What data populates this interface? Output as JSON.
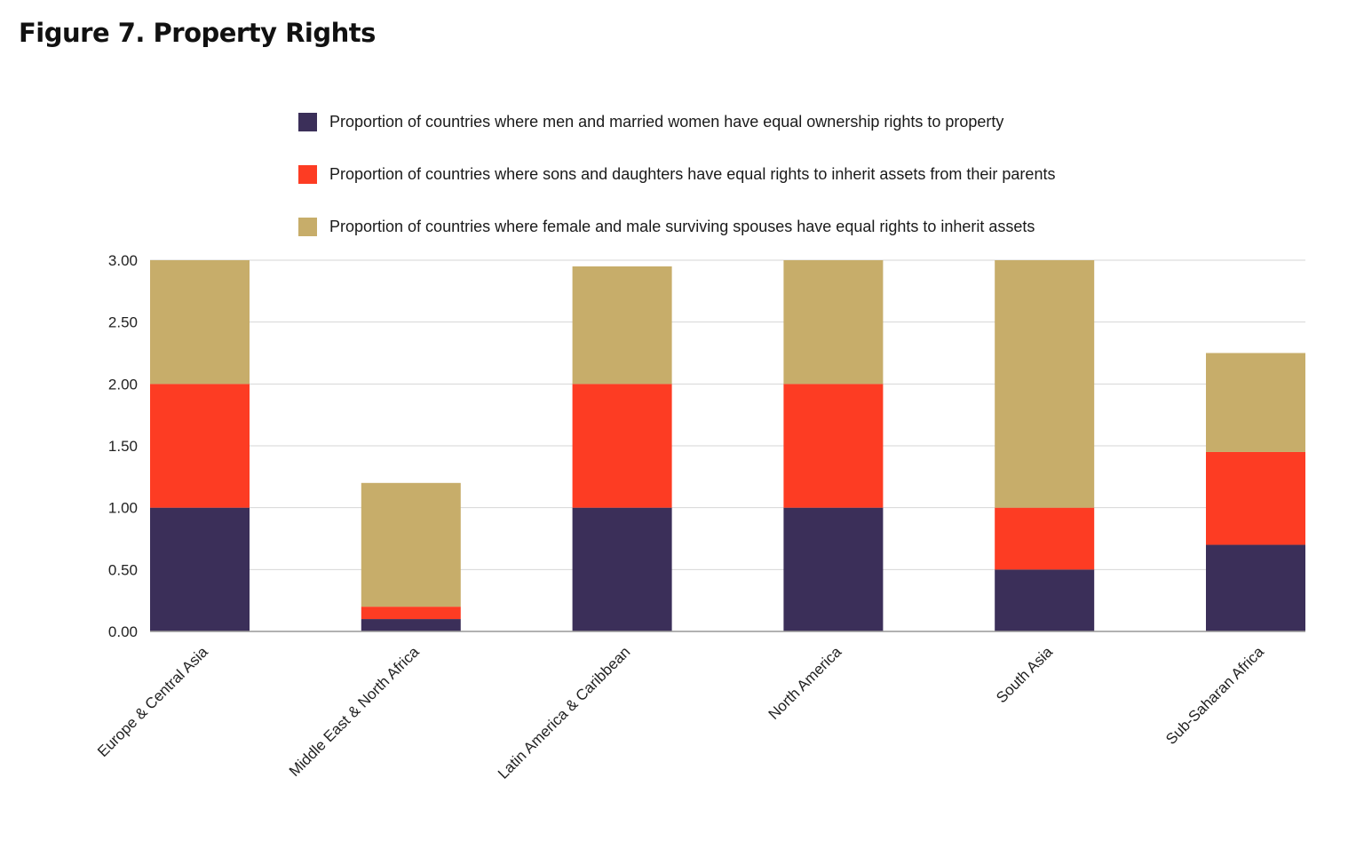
{
  "title": "Figure 7. Property Rights",
  "colors": {
    "men_married_women": "#3b2f59",
    "sons_daughters": "#fd3c23",
    "surviving_spouses": "#c7ad6a",
    "grid": "#d6d6d6",
    "axis": "#999999"
  },
  "legend": [
    {
      "label": "Proportion of countries where men and married women have equal ownership rights to property",
      "color": "#3b2f59"
    },
    {
      "label": "Proportion of countries where sons and daughters have equal rights to inherit assets from their parents",
      "color": "#fd3c23"
    },
    {
      "label": "Proportion of countries where female and male surviving spouses have equal rights to inherit assets",
      "color": "#c7ad6a"
    }
  ],
  "chart_data": {
    "type": "bar",
    "stacked": true,
    "title": "",
    "xlabel": "",
    "ylabel": "",
    "ylim": [
      0,
      3
    ],
    "yticks": [
      "0.00",
      "0.50",
      "1.00",
      "1.50",
      "2.00",
      "2.50",
      "3.00"
    ],
    "grid": true,
    "legend_position": "top",
    "categories": [
      "Europe & Central Asia",
      "Middle East & North Africa",
      "Latin America & Caribbean",
      "North America",
      "South Asia",
      "Sub-Saharan Africa"
    ],
    "series": [
      {
        "name": "Proportion of countries where men and married women have equal ownership rights to property",
        "color": "#3b2f59",
        "values": [
          1.0,
          0.1,
          1.0,
          1.0,
          0.5,
          0.7
        ]
      },
      {
        "name": "Proportion of countries where sons and daughters have equal rights to inherit assets from their parents",
        "color": "#fd3c23",
        "values": [
          1.0,
          0.1,
          1.0,
          1.0,
          0.5,
          0.75
        ]
      },
      {
        "name": "Proportion of countries where female and male surviving spouses have equal rights to inherit assets",
        "color": "#c7ad6a",
        "values": [
          1.0,
          1.0,
          0.95,
          1.0,
          2.0,
          0.8
        ]
      }
    ]
  }
}
